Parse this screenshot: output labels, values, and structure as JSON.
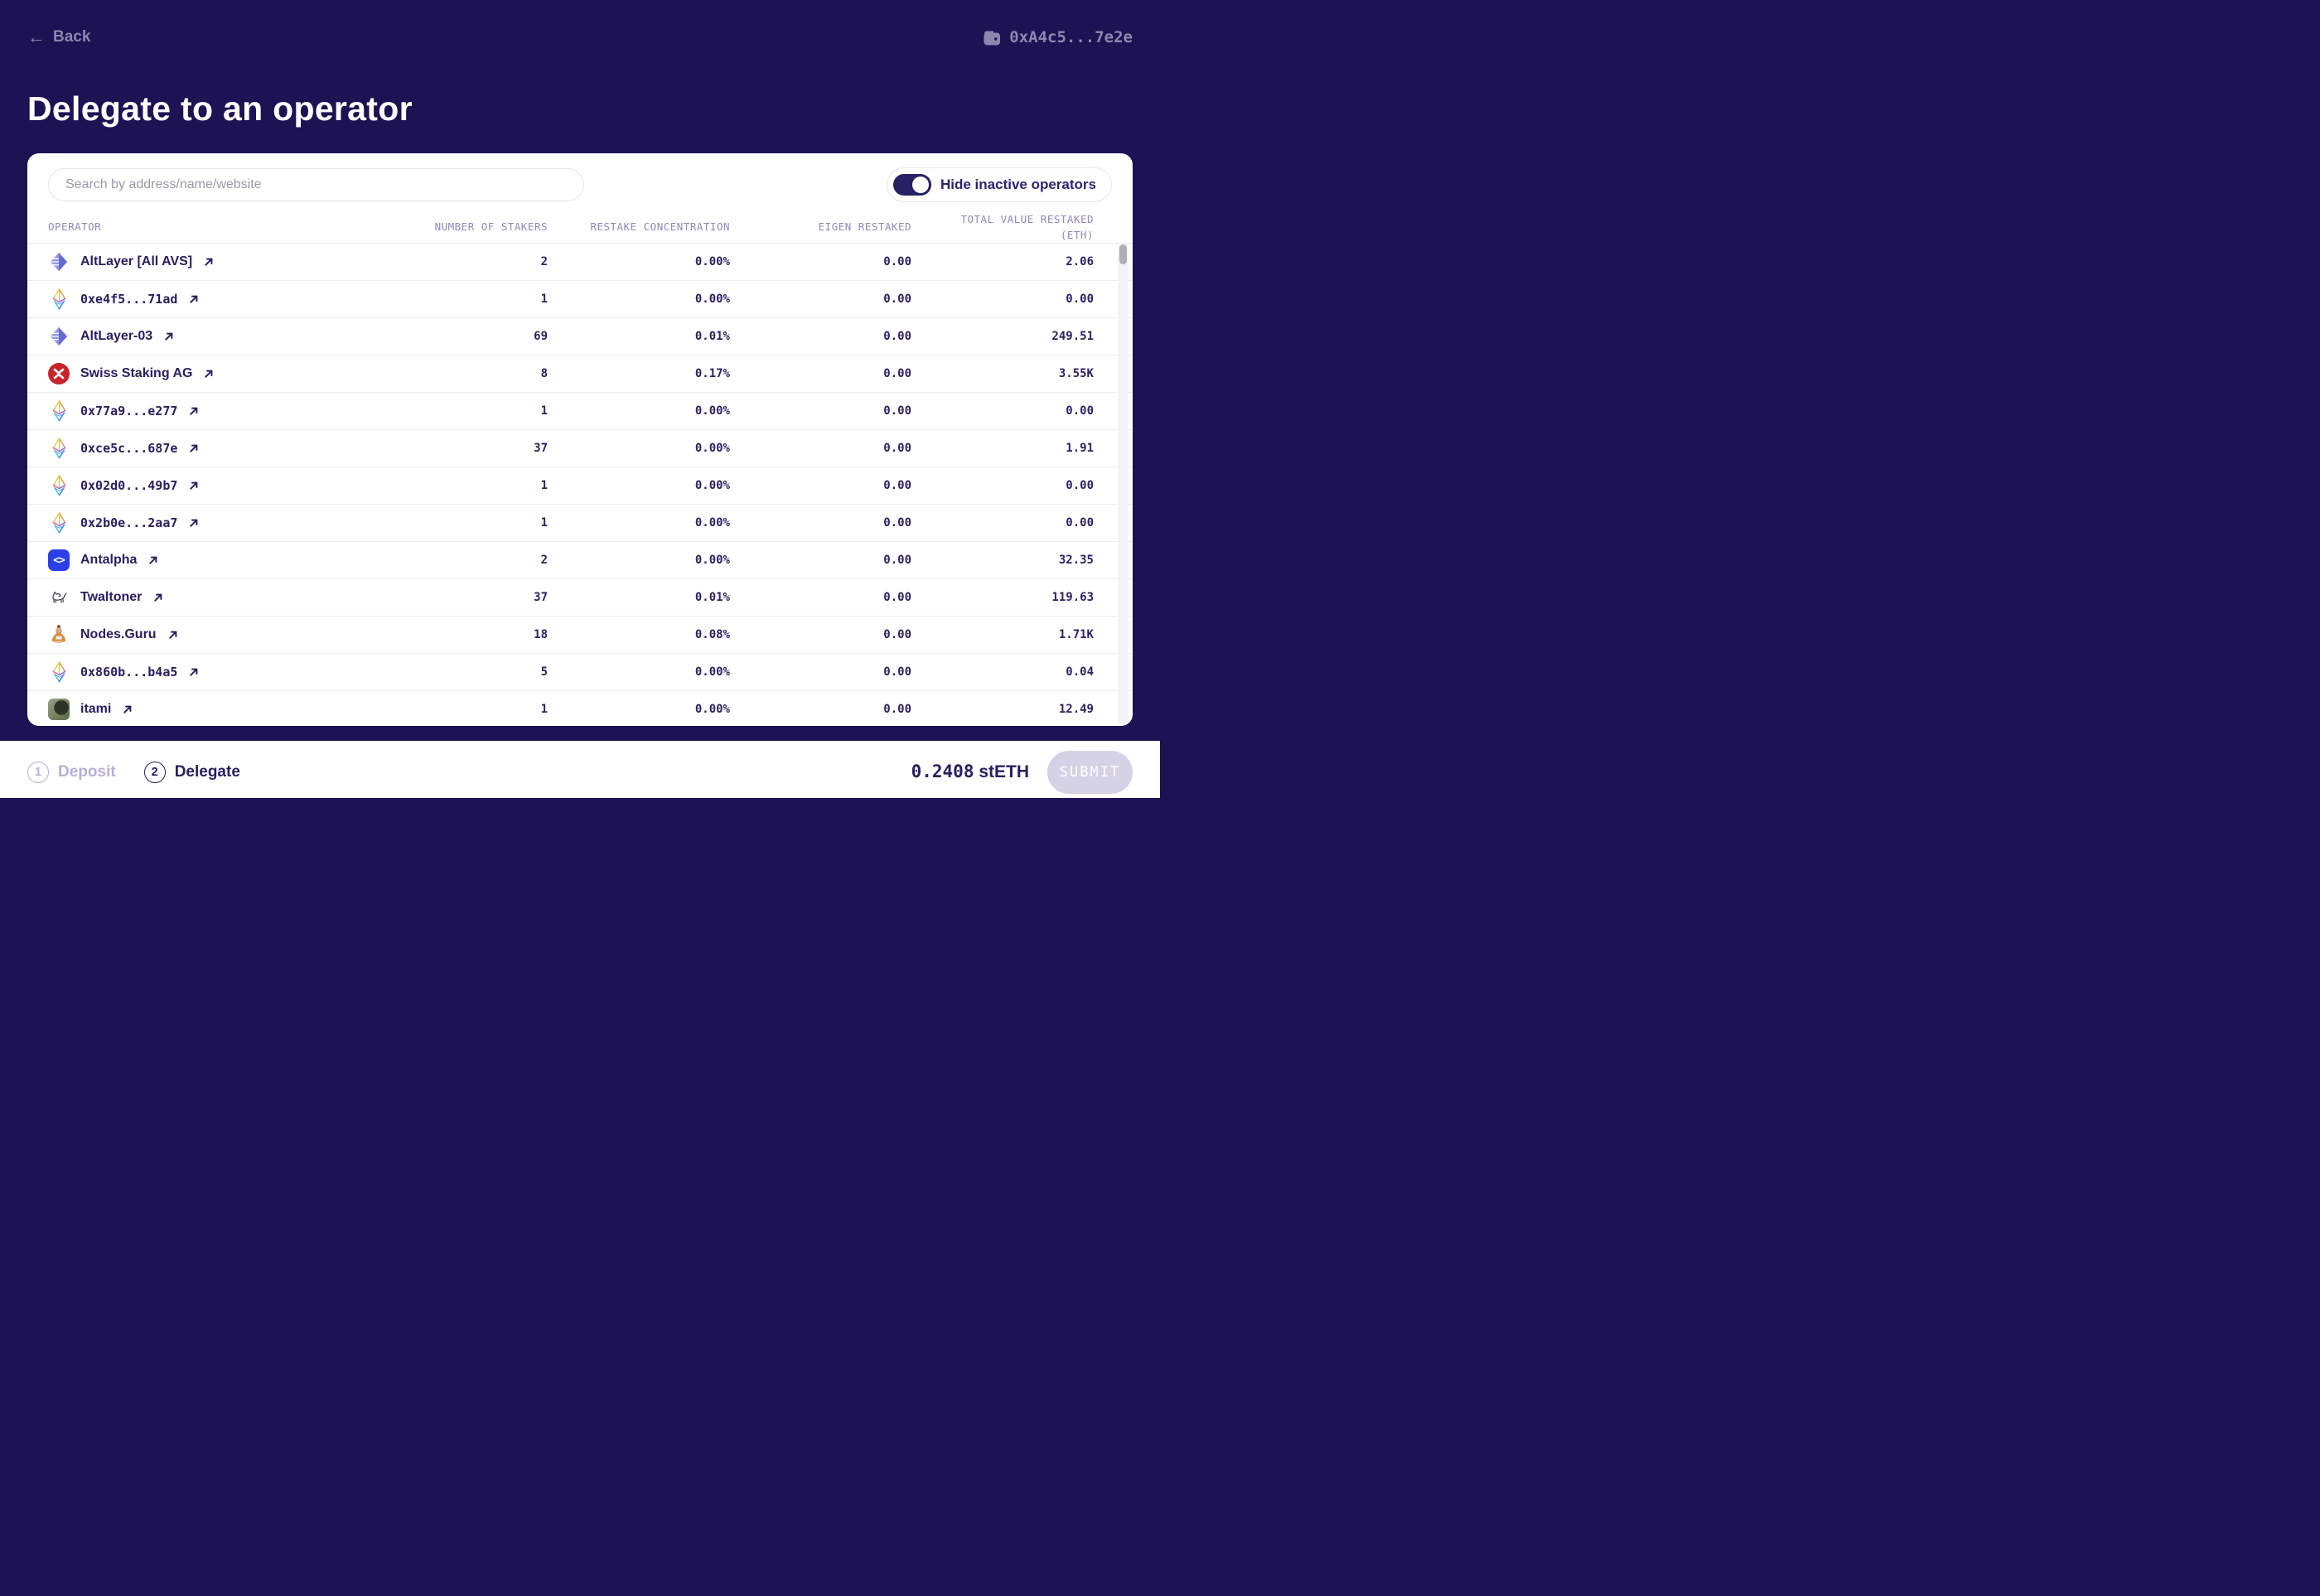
{
  "topbar": {
    "back_label": "Back",
    "wallet_address": "0xA4c5...7e2e"
  },
  "page_title": "Delegate to an operator",
  "toolbar": {
    "search_placeholder": "Search by address/name/website",
    "search_value": "",
    "toggle_label": "Hide inactive operators",
    "toggle_on": true
  },
  "table": {
    "columns": [
      "OPERATOR",
      "NUMBER OF STAKERS",
      "RESTAKE CONCENTRATION",
      "EIGEN RESTAKED",
      "TOTAL VALUE RESTAKED (ETH)"
    ],
    "rows": [
      {
        "name": "AltLayer [All AVS]",
        "icon": "altlayer-logo",
        "mono": false,
        "stakers": "2",
        "concentration": "0.00%",
        "eigen": "0.00",
        "total": "2.06"
      },
      {
        "name": "0xe4f5...71ad",
        "icon": "eth-diamond-logo",
        "mono": true,
        "stakers": "1",
        "concentration": "0.00%",
        "eigen": "0.00",
        "total": "0.00"
      },
      {
        "name": "AltLayer-03",
        "icon": "altlayer-logo",
        "mono": false,
        "stakers": "69",
        "concentration": "0.01%",
        "eigen": "0.00",
        "total": "249.51"
      },
      {
        "name": "Swiss Staking AG",
        "icon": "swiss-staking-logo",
        "mono": false,
        "stakers": "8",
        "concentration": "0.17%",
        "eigen": "0.00",
        "total": "3.55K"
      },
      {
        "name": "0x77a9...e277",
        "icon": "eth-diamond-logo",
        "mono": true,
        "stakers": "1",
        "concentration": "0.00%",
        "eigen": "0.00",
        "total": "0.00"
      },
      {
        "name": "0xce5c...687e",
        "icon": "eth-diamond-logo",
        "mono": true,
        "stakers": "37",
        "concentration": "0.00%",
        "eigen": "0.00",
        "total": "1.91"
      },
      {
        "name": "0x02d0...49b7",
        "icon": "eth-diamond-logo",
        "mono": true,
        "stakers": "1",
        "concentration": "0.00%",
        "eigen": "0.00",
        "total": "0.00"
      },
      {
        "name": "0x2b0e...2aa7",
        "icon": "eth-diamond-logo",
        "mono": true,
        "stakers": "1",
        "concentration": "0.00%",
        "eigen": "0.00",
        "total": "0.00"
      },
      {
        "name": "Antalpha",
        "icon": "antalpha-logo",
        "mono": false,
        "stakers": "2",
        "concentration": "0.00%",
        "eigen": "0.00",
        "total": "32.35"
      },
      {
        "name": "Twaltoner",
        "icon": "dog-sketch-logo",
        "mono": false,
        "stakers": "37",
        "concentration": "0.01%",
        "eigen": "0.00",
        "total": "119.63"
      },
      {
        "name": "Nodes.Guru",
        "icon": "guru-logo",
        "mono": false,
        "stakers": "18",
        "concentration": "0.08%",
        "eigen": "0.00",
        "total": "1.71K"
      },
      {
        "name": "0x860b...b4a5",
        "icon": "eth-diamond-logo",
        "mono": true,
        "stakers": "5",
        "concentration": "0.00%",
        "eigen": "0.00",
        "total": "0.04"
      },
      {
        "name": "itami",
        "icon": "photo-avatar",
        "mono": false,
        "stakers": "1",
        "concentration": "0.00%",
        "eigen": "0.00",
        "total": "12.49"
      }
    ]
  },
  "footer": {
    "steps": [
      {
        "num": "1",
        "label": "Deposit",
        "active": false
      },
      {
        "num": "2",
        "label": "Delegate",
        "active": true
      }
    ],
    "amount": "0.2408",
    "amount_unit": "stETH",
    "submit_label": "SUBMIT"
  },
  "colors": {
    "background": "#1c1254",
    "accent_text": "#272060",
    "muted_text": "#8d87b0",
    "header_text": "#8e89b8",
    "inactive_step": "#b6b0d4",
    "swiss_red": "#c8242b",
    "antalpha_blue": "#2c3ee8",
    "altlayer_purple": "#646bd2",
    "submit_bg": "#d6d2e6",
    "row_divider": "#ededf1"
  }
}
